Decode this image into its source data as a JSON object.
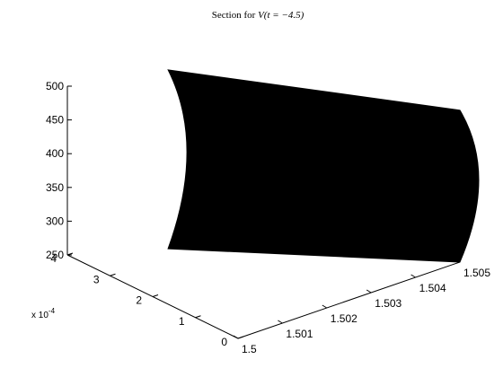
{
  "chart_data": {
    "type": "surface",
    "title_prefix": "Section for ",
    "title_math": "V(t = −4.5)",
    "surface_color": "#000000",
    "grid": false,
    "legend": "none",
    "x": {
      "ticks": [
        1.5,
        1.501,
        1.502,
        1.503,
        1.504,
        1.505
      ],
      "tick_labels": [
        "1.5",
        "1.501",
        "1.502",
        "1.503",
        "1.504",
        "1.505"
      ],
      "range": [
        1.5,
        1.505
      ],
      "surface_extent": [
        1.5015,
        1.505
      ]
    },
    "y": {
      "ticks": [
        0,
        1,
        2,
        3,
        4
      ],
      "tick_labels": [
        "0",
        "1",
        "2",
        "3",
        "4"
      ],
      "exponent_label": "x 10",
      "exponent_power": "-4",
      "range": [
        0,
        4
      ],
      "surface_extent": [
        0,
        3.2
      ]
    },
    "z": {
      "ticks": [
        250,
        300,
        350,
        400,
        450,
        500
      ],
      "tick_labels": [
        "250",
        "300",
        "350",
        "400",
        "450",
        "500"
      ],
      "range": [
        250,
        500
      ]
    },
    "surface_corners": [
      {
        "x": 1.5015,
        "y": 3.2,
        "z": 250
      },
      {
        "x": 1.505,
        "y": 0,
        "z": 250
      },
      {
        "x": 1.5015,
        "y": 3.2,
        "z": 515
      },
      {
        "x": 1.505,
        "y": 0,
        "z": 475
      }
    ]
  }
}
